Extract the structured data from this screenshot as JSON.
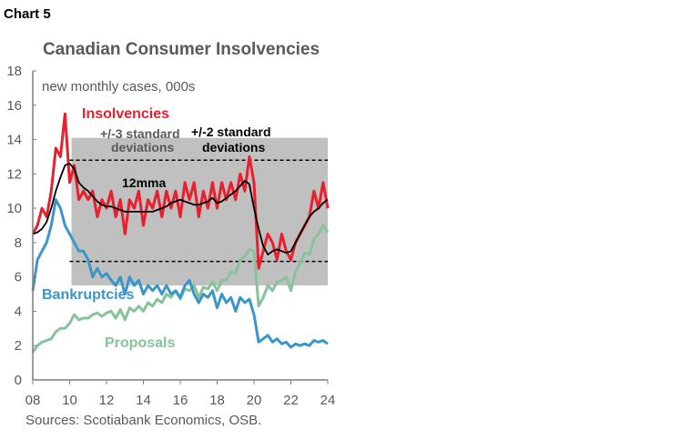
{
  "header": {
    "chart_number": "Chart 5"
  },
  "chart_data": {
    "type": "line",
    "title": "Canadian Consumer Insolvencies",
    "subtitle": "new monthly cases, 000s",
    "source": "Sources: Scotiabank Economics, OSB.",
    "xlim": [
      2008,
      2024
    ],
    "ylim": [
      0,
      18
    ],
    "x_ticks": [
      {
        "v": 2008,
        "label": "08"
      },
      {
        "v": 2010,
        "label": "10"
      },
      {
        "v": 2012,
        "label": "12"
      },
      {
        "v": 2014,
        "label": "14"
      },
      {
        "v": 2016,
        "label": "16"
      },
      {
        "v": 2018,
        "label": "18"
      },
      {
        "v": 2020,
        "label": "20"
      },
      {
        "v": 2022,
        "label": "22"
      },
      {
        "v": 2024,
        "label": "24"
      }
    ],
    "y_ticks": [
      0,
      2,
      4,
      6,
      8,
      10,
      12,
      14,
      16,
      18
    ],
    "grid": false,
    "x_start": 2008,
    "x_step": 0.25,
    "bands": [
      {
        "label_line1": "+/-3 standard",
        "label_line2": "deviations",
        "x": [
          2010.1,
          2024
        ],
        "y": [
          5.5,
          14.1
        ],
        "color": "#c0c0c0"
      }
    ],
    "reference_lines": [
      {
        "label_line1": "+/-2 standard",
        "label_line2": "deviations",
        "x": [
          2010,
          2024
        ],
        "values": [
          12.8,
          6.9
        ],
        "style": "dashed"
      }
    ],
    "series": [
      {
        "name": "Insolvencies",
        "color": "#e8202e",
        "values": [
          8.5,
          9,
          10,
          9.5,
          11,
          13.5,
          13,
          15.5,
          11.5,
          12.5,
          10.5,
          11,
          10.5,
          11,
          9.5,
          10.5,
          10,
          11,
          9.5,
          10.5,
          8.5,
          10.5,
          10,
          11,
          9,
          10.5,
          10,
          11,
          9.5,
          11,
          10,
          11,
          9.5,
          11.5,
          10.5,
          11.5,
          9.5,
          11,
          10,
          11.5,
          10,
          11.5,
          10.5,
          11.5,
          10.5,
          12,
          11,
          13,
          11.5,
          6.5,
          7.5,
          8.5,
          8,
          7,
          8.5,
          7.5,
          7,
          8,
          8.5,
          9,
          9.5,
          11,
          10,
          11.5,
          10
        ]
      },
      {
        "name": "12mma",
        "color": "#000000",
        "values": [
          8.5,
          8.6,
          8.8,
          9.2,
          10,
          11,
          11.8,
          12.5,
          12.6,
          12.3,
          11.5,
          11.2,
          11,
          10.7,
          10.4,
          10.2,
          10.1,
          10.1,
          10,
          9.9,
          9.8,
          9.8,
          9.8,
          9.8,
          9.8,
          9.8,
          9.8,
          9.9,
          10,
          10.1,
          10.3,
          10.4,
          10.5,
          10.4,
          10.3,
          10.2,
          10.2,
          10.3,
          10.4,
          10.6,
          10.3,
          10.4,
          10.6,
          10.8,
          11,
          11.3,
          11.6,
          11.4,
          10,
          8.8,
          7.8,
          7.3,
          7.5,
          7.6,
          7.5,
          7.4,
          7.5,
          8,
          8.5,
          9,
          9.5,
          9.8,
          10,
          10.3,
          10.5
        ]
      },
      {
        "name": "Bankruptcies",
        "color": "#3a96c9",
        "values": [
          5.2,
          7,
          7.5,
          8,
          9,
          10.5,
          10,
          9,
          8.5,
          8,
          7.5,
          7.5,
          7,
          6,
          6.5,
          6,
          6.2,
          5.8,
          5.5,
          6,
          5,
          6,
          5.5,
          5.8,
          5,
          5.5,
          5.2,
          5.5,
          5,
          5.5,
          5,
          5.2,
          4.8,
          5.5,
          5.8,
          5,
          4.5,
          5,
          4.8,
          5.2,
          4.2,
          5,
          4.5,
          4.8,
          4,
          4.8,
          4.5,
          4.7,
          3.8,
          2.2,
          2.4,
          2.6,
          2.2,
          2.4,
          2.1,
          2.2,
          1.9,
          2.1,
          2,
          2.1,
          2,
          2.3,
          2.2,
          2.3,
          2.1
        ]
      },
      {
        "name": "Proposals",
        "color": "#86c39b",
        "values": [
          1.6,
          2,
          2.2,
          2.3,
          2.4,
          2.8,
          3,
          3,
          3.3,
          3.8,
          3.5,
          3.6,
          3.6,
          3.8,
          3.9,
          3.7,
          3.9,
          4,
          3.6,
          4.1,
          3.5,
          4.2,
          4,
          4.3,
          4,
          4.5,
          4.3,
          4.7,
          4.5,
          5,
          4.8,
          5.2,
          4.7,
          5.3,
          5.2,
          5.5,
          4.8,
          5.4,
          5.3,
          5.7,
          5.2,
          5.8,
          5.8,
          6.3,
          6.2,
          7,
          7.2,
          7.6,
          7.5,
          4.3,
          4.8,
          5.5,
          5.2,
          5.7,
          5.8,
          6,
          5.2,
          6.3,
          6.8,
          7.4,
          7.3,
          8.2,
          8.5,
          9,
          8.6
        ]
      }
    ]
  }
}
